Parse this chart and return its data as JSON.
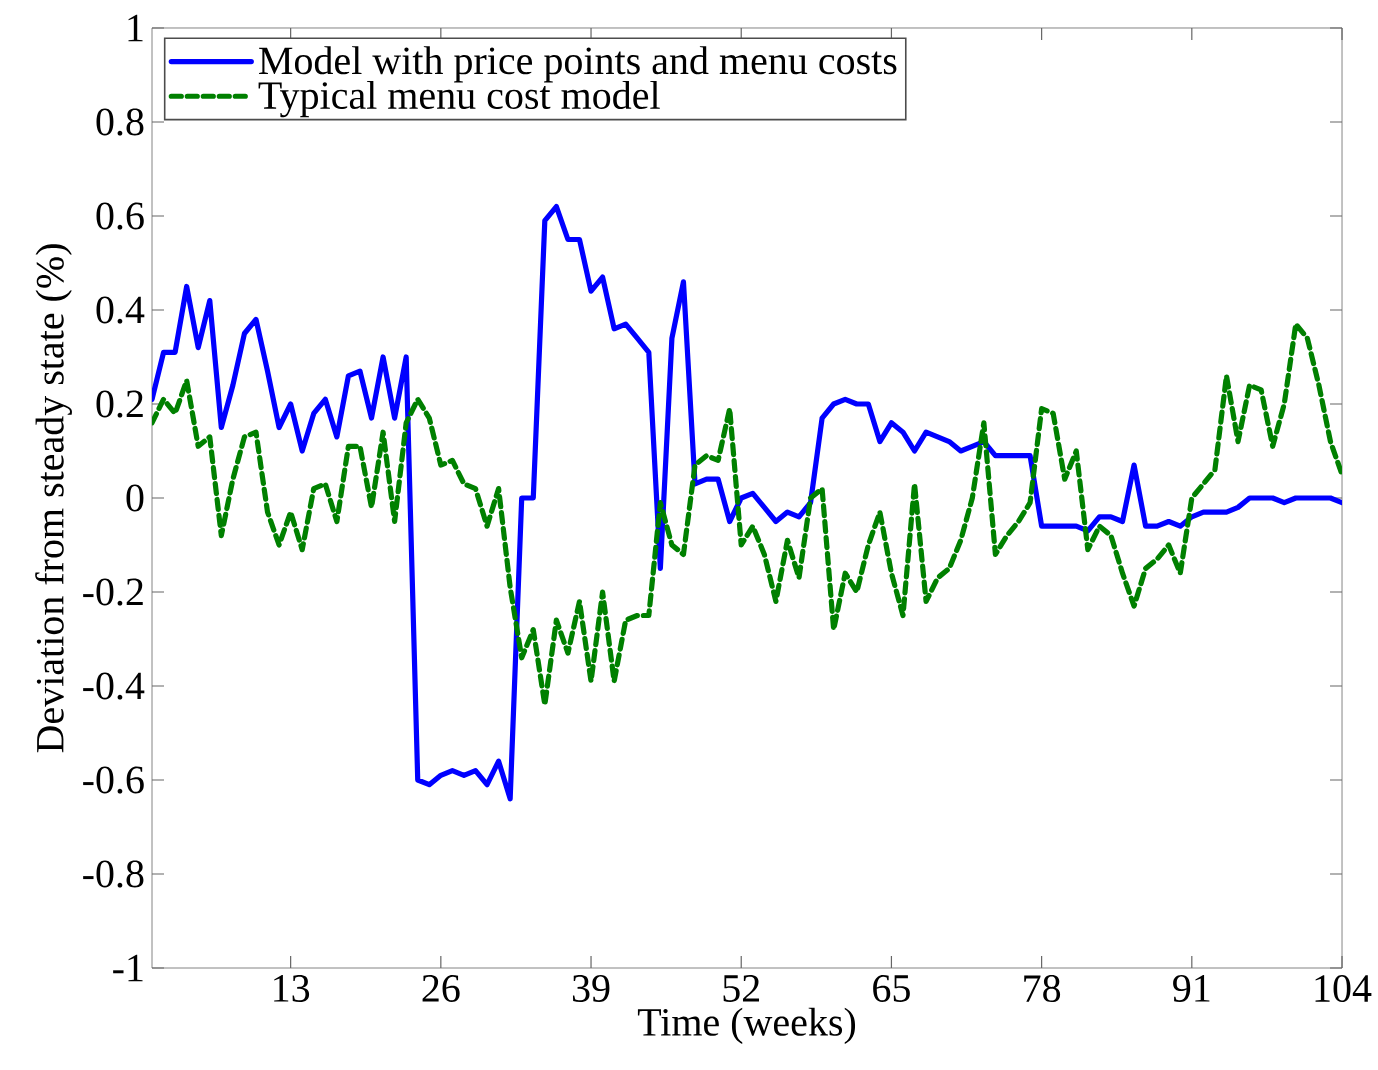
{
  "chart_data": {
    "type": "line",
    "xlabel": "Time (weeks)",
    "ylabel": "Deviation from steady state (%)",
    "x": [
      1,
      2,
      3,
      4,
      5,
      6,
      7,
      8,
      9,
      10,
      11,
      12,
      13,
      14,
      15,
      16,
      17,
      18,
      19,
      20,
      21,
      22,
      23,
      24,
      25,
      26,
      27,
      28,
      29,
      30,
      31,
      32,
      33,
      34,
      35,
      36,
      37,
      38,
      39,
      40,
      41,
      42,
      43,
      44,
      45,
      46,
      47,
      48,
      49,
      50,
      51,
      52,
      53,
      54,
      55,
      56,
      57,
      58,
      59,
      60,
      61,
      62,
      63,
      64,
      65,
      66,
      67,
      68,
      69,
      70,
      71,
      72,
      73,
      74,
      75,
      76,
      77,
      78,
      79,
      80,
      81,
      82,
      83,
      84,
      85,
      86,
      87,
      88,
      89,
      90,
      91,
      92,
      93,
      94,
      95,
      96,
      97,
      98,
      99,
      100,
      101,
      102,
      103,
      104
    ],
    "xlim": [
      1,
      104
    ],
    "xticks": [
      13,
      26,
      39,
      52,
      65,
      78,
      91,
      104
    ],
    "ylim": [
      -1,
      1
    ],
    "yticks": [
      -1,
      -0.8,
      -0.6,
      -0.4,
      -0.2,
      0,
      0.2,
      0.4,
      0.6,
      0.8,
      1
    ],
    "legend": "top left",
    "grid": false,
    "marker": "none",
    "series": [
      {
        "name": "Model with price points and menu costs",
        "color": "#0000ff",
        "line_style": "solid",
        "values": [
          0.21,
          0.31,
          0.31,
          0.45,
          0.32,
          0.42,
          0.15,
          0.24,
          0.35,
          0.38,
          0.27,
          0.15,
          0.2,
          0.1,
          0.18,
          0.21,
          0.13,
          0.26,
          0.27,
          0.17,
          0.3,
          0.17,
          0.3,
          -0.6,
          -0.61,
          -0.59,
          -0.58,
          -0.59,
          -0.58,
          -0.61,
          -0.56,
          -0.64,
          0.0,
          0.0,
          0.59,
          0.62,
          0.55,
          0.55,
          0.44,
          0.47,
          0.36,
          0.37,
          0.34,
          0.31,
          -0.15,
          0.34,
          0.46,
          0.03,
          0.04,
          0.04,
          -0.05,
          0.0,
          0.01,
          -0.02,
          -0.05,
          -0.03,
          -0.04,
          -0.01,
          0.17,
          0.2,
          0.21,
          0.2,
          0.2,
          0.12,
          0.16,
          0.14,
          0.1,
          0.14,
          0.13,
          0.12,
          0.1,
          0.11,
          0.12,
          0.09,
          0.09,
          0.09,
          0.09,
          -0.06,
          -0.06,
          -0.06,
          -0.06,
          -0.07,
          -0.04,
          -0.04,
          -0.05,
          0.07,
          -0.06,
          -0.06,
          -0.05,
          -0.06,
          -0.04,
          -0.03,
          -0.03,
          -0.03,
          -0.02,
          0.0,
          0.0,
          0.0,
          -0.01,
          0.0,
          0.0,
          0.0,
          0.0,
          -0.01
        ]
      },
      {
        "name": "Typical menu cost model",
        "color": "#008000",
        "line_style": "dashed",
        "values": [
          0.16,
          0.21,
          0.18,
          0.25,
          0.11,
          0.13,
          -0.08,
          0.04,
          0.13,
          0.14,
          -0.03,
          -0.1,
          -0.03,
          -0.11,
          0.02,
          0.03,
          -0.05,
          0.11,
          0.11,
          -0.02,
          0.14,
          -0.05,
          0.16,
          0.21,
          0.17,
          0.07,
          0.08,
          0.03,
          0.02,
          -0.06,
          0.02,
          -0.19,
          -0.34,
          -0.28,
          -0.44,
          -0.26,
          -0.33,
          -0.22,
          -0.39,
          -0.2,
          -0.39,
          -0.26,
          -0.25,
          -0.25,
          -0.01,
          -0.1,
          -0.12,
          0.07,
          0.09,
          0.08,
          0.19,
          -0.1,
          -0.06,
          -0.12,
          -0.22,
          -0.09,
          -0.17,
          0.0,
          0.02,
          -0.28,
          -0.16,
          -0.2,
          -0.1,
          -0.03,
          -0.16,
          -0.25,
          0.03,
          -0.22,
          -0.17,
          -0.15,
          -0.09,
          0.0,
          0.16,
          -0.12,
          -0.08,
          -0.05,
          -0.01,
          0.19,
          0.18,
          0.04,
          0.1,
          -0.11,
          -0.06,
          -0.08,
          -0.16,
          -0.23,
          -0.15,
          -0.13,
          -0.1,
          -0.16,
          0.0,
          0.03,
          0.06,
          0.26,
          0.12,
          0.24,
          0.23,
          0.11,
          0.2,
          0.37,
          0.34,
          0.24,
          0.12,
          0.05
        ]
      }
    ]
  }
}
